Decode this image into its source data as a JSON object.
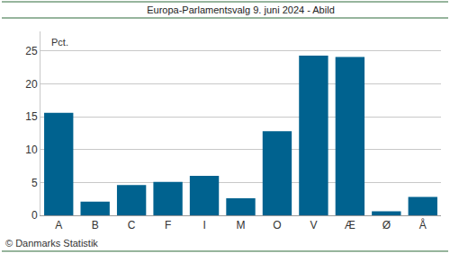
{
  "chart_data": {
    "type": "bar",
    "title": "Europa-Parlamentsvalg 9. juni 2024 - Abild",
    "ylabel": "Pct.",
    "categories": [
      "A",
      "B",
      "C",
      "F",
      "I",
      "M",
      "O",
      "V",
      "Æ",
      "Ø",
      "Å"
    ],
    "values": [
      15.6,
      2.1,
      4.6,
      5.1,
      6.0,
      2.6,
      12.8,
      24.3,
      24.1,
      0.6,
      2.8
    ],
    "color": "#00628f",
    "ylim": [
      0,
      28
    ],
    "yticks": [
      0,
      5,
      10,
      15,
      20,
      25
    ],
    "grid": true,
    "annotations": [
      "© Danmarks Statistik"
    ]
  }
}
